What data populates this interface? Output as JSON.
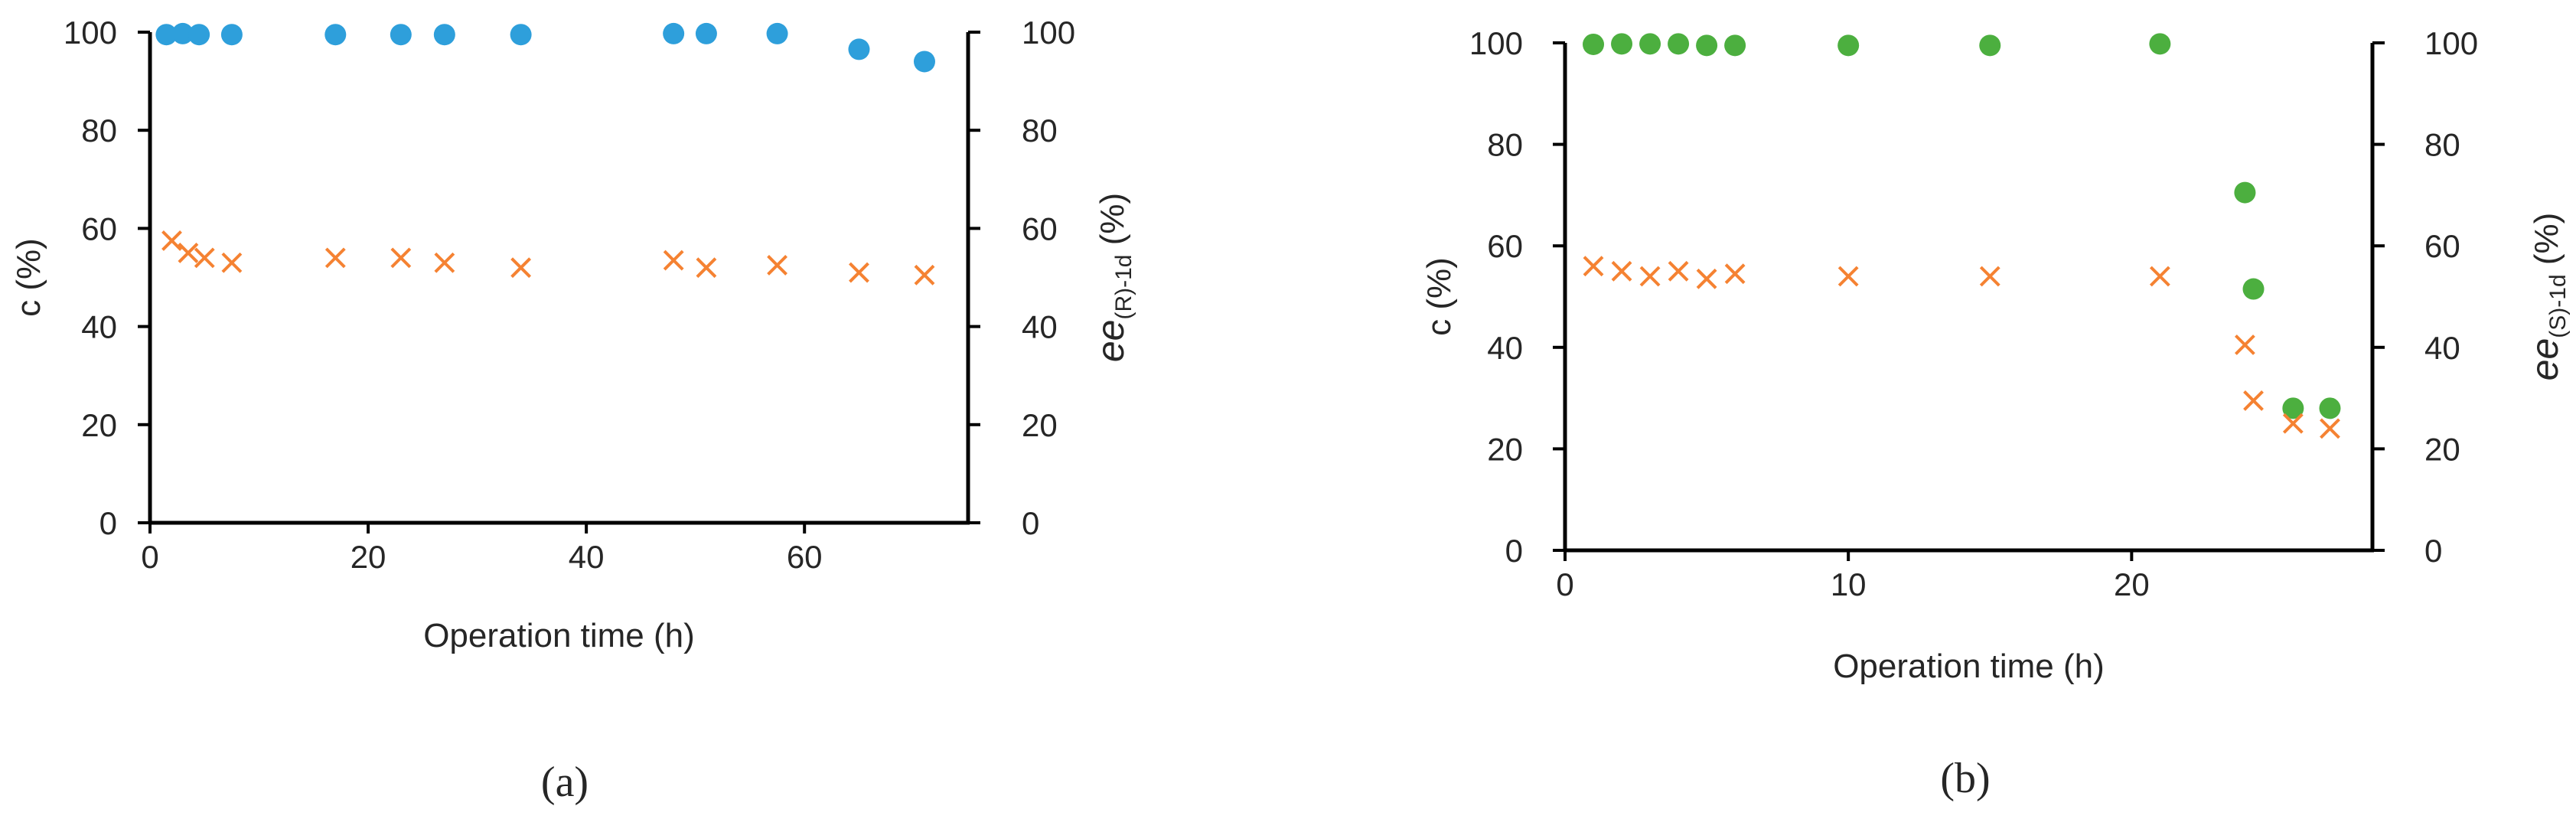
{
  "chart_data": [
    {
      "panel_label": "(a)",
      "type": "scatter",
      "xlabel": "Operation time (h)",
      "ylabel": "c (%)",
      "y2label_main": "ee",
      "y2label_sub": "(R)-1d",
      "y2label_unit": "(%)",
      "xlim": [
        0,
        75
      ],
      "xticks": [
        0,
        20,
        40,
        60
      ],
      "ylim": [
        0,
        100
      ],
      "yticks": [
        0,
        20,
        40,
        60,
        80,
        100
      ],
      "y2lim": [
        0,
        100
      ],
      "y2ticks": [
        0,
        20,
        40,
        60,
        80,
        100
      ],
      "grid": false,
      "series": [
        {
          "marker": "circle",
          "color": "#2E9FDB",
          "axis": "left",
          "x": [
            1.5,
            3,
            4.5,
            7.5,
            17,
            23,
            27,
            34,
            48,
            51,
            57.5,
            65,
            71
          ],
          "y": [
            99.5,
            99.7,
            99.5,
            99.5,
            99.5,
            99.5,
            99.5,
            99.5,
            99.7,
            99.7,
            99.7,
            96.5,
            94
          ]
        },
        {
          "marker": "x",
          "color": "#F58232",
          "axis": "right",
          "x": [
            2,
            3.5,
            5,
            7.5,
            17,
            23,
            27,
            34,
            48,
            51,
            57.5,
            65,
            71
          ],
          "y": [
            57.5,
            55,
            54,
            53,
            54,
            54,
            53,
            52,
            53.5,
            52,
            52.5,
            51,
            50.5
          ]
        }
      ]
    },
    {
      "panel_label": "(b)",
      "type": "scatter",
      "xlabel": "Operation time (h)",
      "ylabel": "c (%)",
      "y2label_main": "ee",
      "y2label_sub": "(S)-1d",
      "y2label_unit": "(%)",
      "xlim": [
        0,
        28.5
      ],
      "xticks": [
        0,
        10,
        20
      ],
      "ylim": [
        0,
        100
      ],
      "yticks": [
        0,
        20,
        40,
        60,
        80,
        100
      ],
      "y2lim": [
        0,
        100
      ],
      "y2ticks": [
        0,
        20,
        40,
        60,
        80,
        100
      ],
      "grid": false,
      "series": [
        {
          "marker": "circle",
          "color": "#4CAF3F",
          "axis": "left",
          "x": [
            1,
            2,
            3,
            4,
            5,
            6,
            10,
            15,
            21,
            24,
            24.3,
            25.7,
            27
          ],
          "y": [
            99.7,
            99.8,
            99.8,
            99.8,
            99.5,
            99.5,
            99.5,
            99.5,
            99.8,
            70.5,
            51.5,
            28,
            28
          ]
        },
        {
          "marker": "x",
          "color": "#F58232",
          "axis": "right",
          "x": [
            1,
            2,
            3,
            4,
            5,
            6,
            10,
            15,
            21,
            24,
            24.3,
            25.7,
            27
          ],
          "y": [
            56,
            55,
            54,
            55,
            53.5,
            54.5,
            54,
            54,
            54,
            40.5,
            29.5,
            25,
            24
          ]
        }
      ]
    }
  ]
}
